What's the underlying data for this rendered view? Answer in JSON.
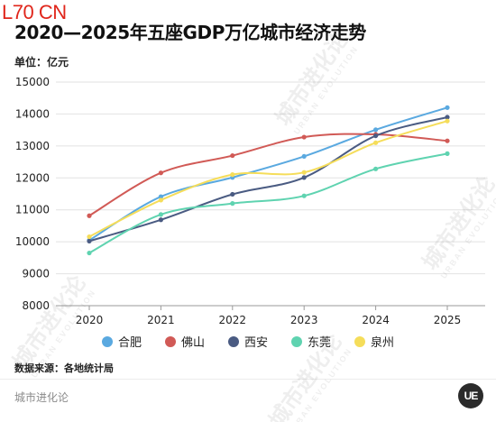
{
  "brand_mark": "L70 CN",
  "page_title": "2020—2025年五座GDP万亿城市经济走势",
  "unit_label": "单位：亿元",
  "source_label": "数据来源：各地统计局",
  "footer_brand": "城市进化论",
  "logo_text": "UE",
  "watermark": {
    "cn": "城市进化论",
    "en": "URBAN EVOLUTION"
  },
  "chart_data": {
    "type": "line",
    "title": "2020—2025年五座GDP万亿城市经济走势",
    "ylabel": "单位：亿元",
    "xlabel": "",
    "categories": [
      "2020",
      "2021",
      "2022",
      "2023",
      "2024",
      "2025"
    ],
    "ylim": [
      8000,
      15000
    ],
    "yticks": [
      8000,
      9000,
      10000,
      11000,
      12000,
      13000,
      14000,
      15000
    ],
    "grid": true,
    "smooth": true,
    "legend_position": "bottom",
    "series": [
      {
        "name": "合肥",
        "color": "#5aa9e0",
        "values": [
          10046,
          11413,
          12014,
          12674,
          13507,
          14200
        ]
      },
      {
        "name": "佛山",
        "color": "#d15a56",
        "values": [
          10816,
          12157,
          12698,
          13277,
          13362,
          13160
        ]
      },
      {
        "name": "西安",
        "color": "#4a5b82",
        "values": [
          10020,
          10688,
          11487,
          12011,
          13318,
          13900
        ]
      },
      {
        "name": "东莞",
        "color": "#5fd3b0",
        "values": [
          9650,
          10855,
          11200,
          11438,
          12282,
          12760
        ]
      },
      {
        "name": "泉州",
        "color": "#f5dd5a",
        "values": [
          10158,
          11304,
          12103,
          12172,
          13100,
          13780
        ]
      }
    ]
  }
}
